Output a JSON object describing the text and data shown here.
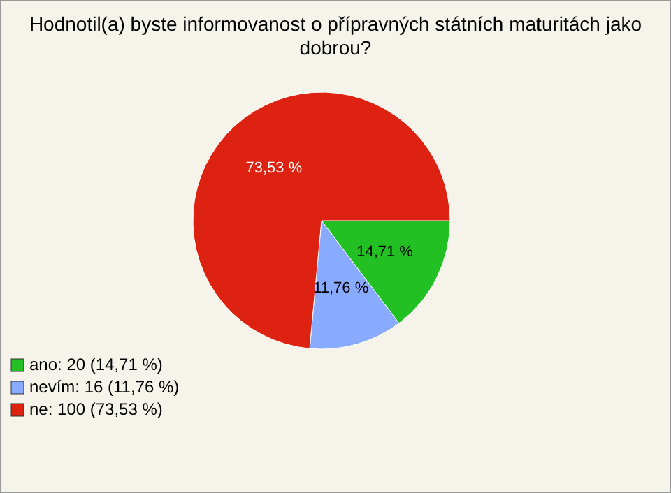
{
  "chart_data": {
    "type": "pie",
    "title": "Hodnotil(a) byste informovanost o přípravných státních maturitách jako dobrou?",
    "categories": [
      "ano: 20 (14,71 %)",
      "nevím: 16 (11,76 %)",
      "ne: 100 (73,53 %)"
    ],
    "values": [
      14.71,
      11.76,
      73.53
    ],
    "colors": [
      "#22c022",
      "#88aaff",
      "#dd2211"
    ],
    "value_labels": [
      "14,71 %",
      "11,76 %",
      "73,53 %"
    ],
    "legend": "bottom left"
  }
}
